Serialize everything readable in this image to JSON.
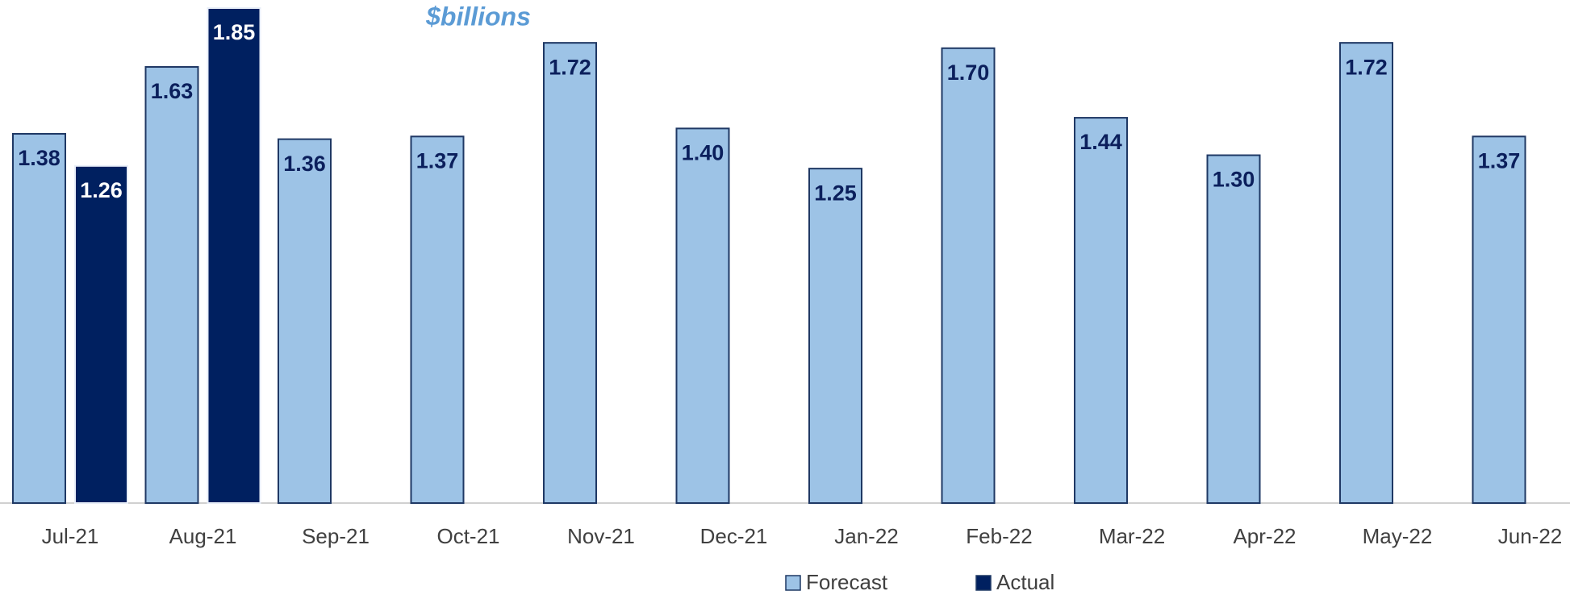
{
  "chart_data": {
    "type": "bar",
    "title": "$billions",
    "categories": [
      "Jul-21",
      "Aug-21",
      "Sep-21",
      "Oct-21",
      "Nov-21",
      "Dec-21",
      "Jan-22",
      "Feb-22",
      "Mar-22",
      "Apr-22",
      "May-22",
      "Jun-22"
    ],
    "series": [
      {
        "name": "Forecast",
        "color": "#9dc3e6",
        "values": [
          1.38,
          1.63,
          1.36,
          1.37,
          1.72,
          1.4,
          1.25,
          1.7,
          1.44,
          1.3,
          1.72,
          1.37
        ],
        "value_labels": [
          "1.38",
          "1.63",
          "1.36",
          "1.37",
          "1.72",
          "1.40",
          "1.25",
          "1.70",
          "1.44",
          "1.30",
          "1.72",
          "1.37"
        ]
      },
      {
        "name": "Actual",
        "color": "#002060",
        "values": [
          1.26,
          1.85,
          null,
          null,
          null,
          null,
          null,
          null,
          null,
          null,
          null,
          null
        ],
        "value_labels": [
          "1.26",
          "1.85",
          null,
          null,
          null,
          null,
          null,
          null,
          null,
          null,
          null,
          null
        ]
      }
    ],
    "ylim": [
      0,
      1.85
    ],
    "legend": "bottom"
  }
}
